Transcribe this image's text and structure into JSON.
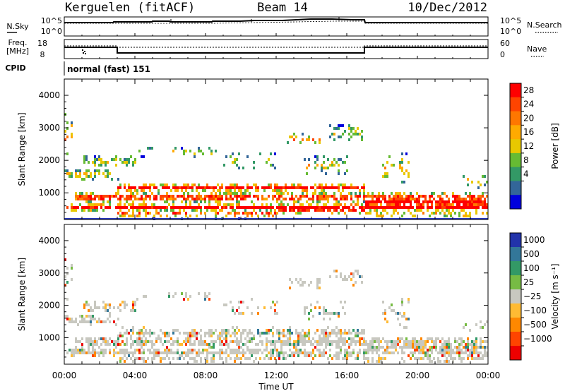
{
  "header": {
    "station": "Kerguelen (fitACF)",
    "beam": "Beam 14",
    "date": "10/Dec/2012"
  },
  "top_panel": {
    "nsky_label": "N.Sky",
    "nsky_ticks": [
      "10^5",
      "10^0"
    ],
    "nsearch_label": "N.Search",
    "nsearch_ticks": [
      "10^5",
      "10^0"
    ],
    "freq_label_1": "Freq.",
    "freq_label_2": "[MHz]",
    "freq_ticks": [
      "18",
      "8"
    ],
    "nave_label": "Nave",
    "nave_ticks": [
      "60",
      "0"
    ],
    "cpid_label": "CPID",
    "cpid_value": "normal (fast) 151"
  },
  "chart_data": [
    {
      "type": "heatmap",
      "name": "power",
      "ylabel": "Slant Range [km]",
      "yticks": [
        "4000",
        "3000",
        "2000",
        "1000"
      ],
      "ylim": [
        180,
        4500
      ],
      "xticks": [
        "00:00",
        "04:00",
        "08:00",
        "12:00",
        "16:00",
        "20:00",
        "00:00"
      ],
      "xlim": [
        0,
        24
      ],
      "colorbar_label": "Power [dB]",
      "colorbar_ticks": [
        "28",
        "24",
        "20",
        "16",
        "12",
        "8",
        "4"
      ],
      "colorbar_colors": [
        "#ff0000",
        "#ff4400",
        "#ff7700",
        "#ffaa00",
        "#e8c800",
        "#66bb33",
        "#339966",
        "#336699",
        "#0000dd"
      ]
    },
    {
      "type": "heatmap",
      "name": "velocity",
      "ylabel": "Slant Range [km]",
      "yticks": [
        "4000",
        "3000",
        "2000",
        "1000"
      ],
      "ylim": [
        180,
        4500
      ],
      "xticks": [
        "00:00",
        "04:00",
        "08:00",
        "12:00",
        "16:00",
        "20:00",
        "00:00"
      ],
      "xlabel": "Time UT",
      "xlim": [
        0,
        24
      ],
      "colorbar_label": "Velocity [m s⁻¹]",
      "colorbar_ticks": [
        "1000",
        "500",
        "100",
        "25",
        "−25",
        "−100",
        "−500",
        "−1000"
      ],
      "colorbar_colors": [
        "#2233aa",
        "#337799",
        "#339966",
        "#77bb44",
        "#c8c8c0",
        "#ffbb33",
        "#ff8800",
        "#ff4400",
        "#ee0000"
      ]
    }
  ]
}
